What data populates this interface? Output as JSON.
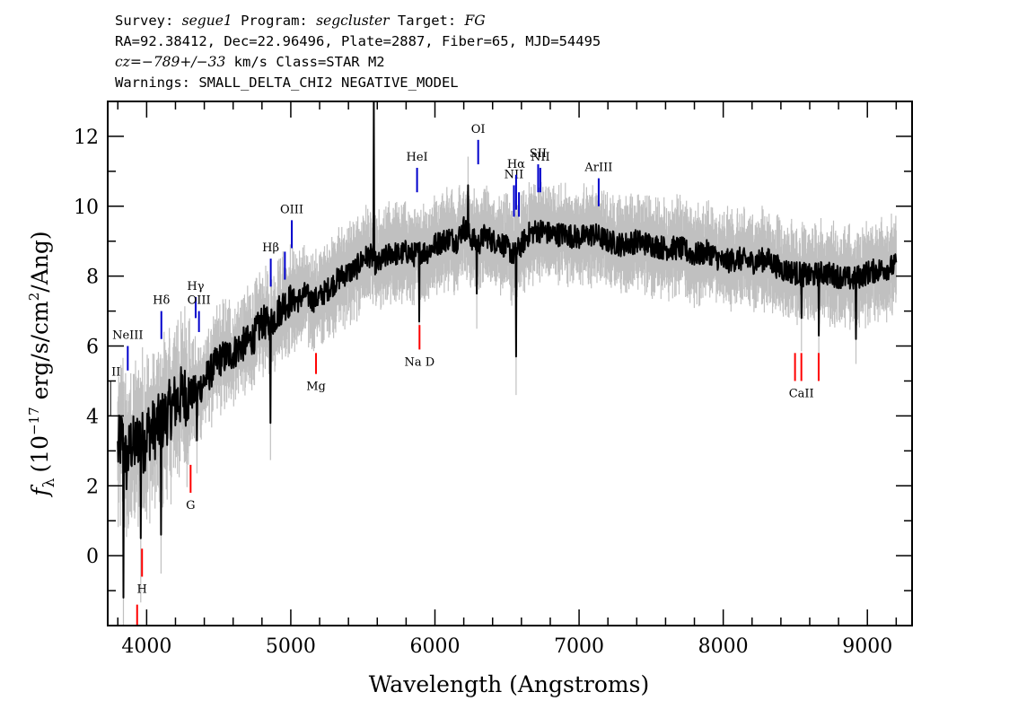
{
  "header": {
    "line1": {
      "survey_label": "Survey:",
      "survey": "segue1",
      "program_label": "Program:",
      "program": "segcluster",
      "target_label": "Target:",
      "target": "FG"
    },
    "line2": "RA=92.38412, Dec=22.96496, Plate=2887, Fiber=65, MJD=54495",
    "line3": {
      "cz": "cz=−789+/−33",
      "rest": " km/s Class=STAR M2"
    },
    "line4": "Warnings: SMALL_DELTA_CHI2 NEGATIVE_MODEL"
  },
  "chart_data": {
    "type": "line",
    "xlabel": "Wavelength (Angstroms)",
    "ylabel": "f_λ (10^-17 erg/s/cm^2/Ang)",
    "ylabel_parts": {
      "f": "f",
      "sub": "λ",
      "pre": "(10",
      "exp": "−17",
      "mid": " erg/s/cm",
      "exp2": "2",
      "post": "/Ang)"
    },
    "xlim": [
      3730,
      9310
    ],
    "ylim": [
      -2.0,
      13.0
    ],
    "x_ticks": [
      4000,
      5000,
      6000,
      7000,
      8000,
      9000
    ],
    "x_tick_labels": [
      "4000",
      "5000",
      "6000",
      "7000",
      "8000",
      "9000"
    ],
    "y_ticks": [
      0,
      2,
      4,
      6,
      8,
      10,
      12
    ],
    "y_tick_labels": [
      "0",
      "2",
      "4",
      "6",
      "8",
      "10",
      "12"
    ],
    "series": [
      {
        "role": "flux",
        "color": "#000000",
        "x": [
          3800,
          3830,
          3860,
          3890,
          3920,
          3950,
          3980,
          4010,
          4050,
          4100,
          4150,
          4200,
          4250,
          4300,
          4350,
          4400,
          4450,
          4500,
          4550,
          4600,
          4650,
          4700,
          4750,
          4800,
          4850,
          4900,
          4950,
          5000,
          5050,
          5100,
          5150,
          5200,
          5250,
          5300,
          5350,
          5400,
          5450,
          5500,
          5550,
          5600,
          5650,
          5700,
          5750,
          5800,
          5850,
          5900,
          5950,
          6000,
          6050,
          6100,
          6150,
          6200,
          6250,
          6300,
          6350,
          6400,
          6450,
          6500,
          6550,
          6600,
          6650,
          6700,
          6750,
          6800,
          6900,
          7000,
          7100,
          7200,
          7300,
          7400,
          7500,
          7600,
          7700,
          7800,
          7900,
          8000,
          8100,
          8200,
          8300,
          8400,
          8500,
          8600,
          8700,
          8800,
          8900,
          9000,
          9100,
          9200
        ],
        "y": [
          3.0,
          3.4,
          2.6,
          3.2,
          3.1,
          3.5,
          3.2,
          3.6,
          3.6,
          3.8,
          4.1,
          4.4,
          4.6,
          4.6,
          4.7,
          5.0,
          5.3,
          5.6,
          5.7,
          5.8,
          6.0,
          6.1,
          6.3,
          6.7,
          6.6,
          6.9,
          7.2,
          7.3,
          7.3,
          7.5,
          7.3,
          7.4,
          7.6,
          7.8,
          8.0,
          8.1,
          8.2,
          8.5,
          8.6,
          8.3,
          8.5,
          8.7,
          8.6,
          8.7,
          8.6,
          8.7,
          8.7,
          8.9,
          9.0,
          9.1,
          9.0,
          9.4,
          9.1,
          8.9,
          9.2,
          9.0,
          9.0,
          8.8,
          8.6,
          8.9,
          9.2,
          9.3,
          9.3,
          9.2,
          9.2,
          9.1,
          9.2,
          9.0,
          8.9,
          9.0,
          8.9,
          8.8,
          8.8,
          8.6,
          8.7,
          8.4,
          8.5,
          8.4,
          8.5,
          8.2,
          8.1,
          8.0,
          8.1,
          8.0,
          7.9,
          8.1,
          8.2,
          8.3
        ]
      },
      {
        "role": "error",
        "color": "#c0c0c0"
      }
    ],
    "spikes": [
      {
        "x": 3840,
        "y": -1.2
      },
      {
        "x": 3960,
        "y": 0.5
      },
      {
        "x": 4100,
        "y": 0.6
      },
      {
        "x": 4350,
        "y": 3.3
      },
      {
        "x": 4860,
        "y": 3.8
      },
      {
        "x": 5577,
        "y": 13.0
      },
      {
        "x": 5892,
        "y": 6.7
      },
      {
        "x": 6230,
        "y": 10.6
      },
      {
        "x": 6290,
        "y": 7.5
      },
      {
        "x": 6563,
        "y": 5.7
      },
      {
        "x": 8542,
        "y": 6.8
      },
      {
        "x": 8662,
        "y": 6.3
      },
      {
        "x": 8920,
        "y": 6.2
      }
    ],
    "emission_lines": [
      {
        "label": "NeIII",
        "x": 3869,
        "y0": 5.3,
        "y1": 6.0,
        "color": "#0000cc"
      },
      {
        "label": "Hδ",
        "x": 4102,
        "y0": 6.2,
        "y1": 7.0,
        "color": "#0000cc"
      },
      {
        "label": "Hγ",
        "x": 4340,
        "y0": 6.8,
        "y1": 7.4,
        "color": "#0000cc"
      },
      {
        "label": "OIII",
        "x": 4363,
        "y0": 6.4,
        "y1": 7.0,
        "color": "#0000cc"
      },
      {
        "label": "Hβ",
        "x": 4861,
        "y0": 7.7,
        "y1": 8.5,
        "color": "#0000cc"
      },
      {
        "label": "",
        "x": 4959,
        "y0": 7.9,
        "y1": 8.7,
        "color": "#0000cc"
      },
      {
        "label": "OIII",
        "x": 5007,
        "y0": 8.8,
        "y1": 9.6,
        "color": "#0000cc"
      },
      {
        "label": "HeI",
        "x": 5876,
        "y0": 10.4,
        "y1": 11.1,
        "color": "#0000cc"
      },
      {
        "label": "OI",
        "x": 6300,
        "y0": 11.2,
        "y1": 11.9,
        "color": "#0000cc"
      },
      {
        "label": "NII",
        "x": 6548,
        "y0": 9.7,
        "y1": 10.6,
        "color": "#0000cc"
      },
      {
        "label": "Hα",
        "x": 6563,
        "y0": 9.9,
        "y1": 10.9,
        "color": "#0000cc"
      },
      {
        "label": "",
        "x": 6583,
        "y0": 9.7,
        "y1": 10.4,
        "color": "#0000cc"
      },
      {
        "label": "SII",
        "x": 6716,
        "y0": 10.4,
        "y1": 11.2,
        "color": "#0000cc"
      },
      {
        "label": "NII",
        "x": 6731,
        "y0": 10.4,
        "y1": 11.1,
        "color": "#0000cc"
      },
      {
        "label": "ArIII",
        "x": 7136,
        "y0": 10.0,
        "y1": 10.8,
        "color": "#0000cc"
      }
    ],
    "edge_label": {
      "label": "II",
      "x": 3750,
      "y0": 4.0,
      "y1": 5.0,
      "color": "#000000"
    },
    "absorption_lines": [
      {
        "label": "H",
        "x": 3968,
        "y0": -0.6,
        "y1": 0.2,
        "color": "#ff0000"
      },
      {
        "label": "",
        "x": 3934,
        "y0": -2.0,
        "y1": -1.4,
        "color": "#ff0000"
      },
      {
        "label": "G",
        "x": 4305,
        "y0": 1.8,
        "y1": 2.6,
        "color": "#ff0000"
      },
      {
        "label": "Mg",
        "x": 5175,
        "y0": 5.2,
        "y1": 5.8,
        "color": "#ff0000"
      },
      {
        "label": "Na D",
        "x": 5893,
        "y0": 5.9,
        "y1": 6.6,
        "color": "#ff0000"
      },
      {
        "label": "",
        "x": 8498,
        "y0": 5.0,
        "y1": 5.8,
        "color": "#ff0000"
      },
      {
        "label": "CaII",
        "x": 8542,
        "y0": 5.0,
        "y1": 5.8,
        "color": "#ff0000"
      },
      {
        "label": "",
        "x": 8662,
        "y0": 5.0,
        "y1": 5.8,
        "color": "#ff0000"
      }
    ]
  }
}
